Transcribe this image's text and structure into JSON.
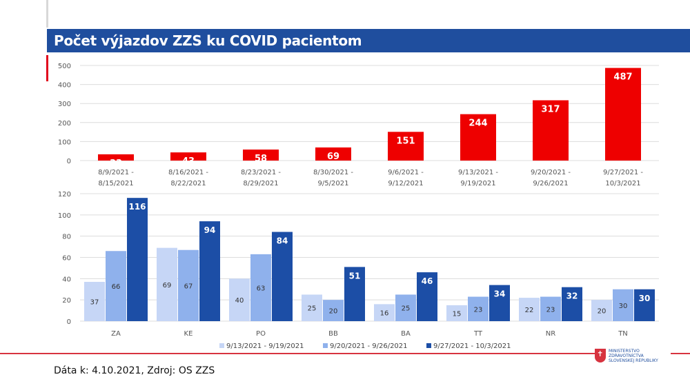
{
  "header": {
    "title": "Počet výjazdov ZZS ku COVID pacientom"
  },
  "chart_data": [
    {
      "type": "bar",
      "categories": [
        "8/9/2021 - 8/15/2021",
        "8/16/2021 - 8/22/2021",
        "8/23/2021 - 8/29/2021",
        "8/30/2021 - 9/5/2021",
        "9/6/2021 - 9/12/2021",
        "9/13/2021 - 9/19/2021",
        "9/20/2021 - 9/26/2021",
        "9/27/2021 - 10/3/2021"
      ],
      "values": [
        33,
        43,
        58,
        69,
        151,
        244,
        317,
        487
      ],
      "ylim": [
        0,
        500
      ],
      "yticks": [
        0,
        100,
        200,
        300,
        400,
        500
      ],
      "grid": true,
      "color": "#ee0000"
    },
    {
      "type": "bar",
      "categories": [
        "ZA",
        "KE",
        "PO",
        "BB",
        "BA",
        "TT",
        "NR",
        "TN"
      ],
      "series": [
        {
          "name": "9/13/2021 - 9/19/2021",
          "values": [
            37,
            69,
            40,
            25,
            16,
            15,
            22,
            20
          ],
          "color": "#c6d6f6"
        },
        {
          "name": "9/20/2021 - 9/26/2021",
          "values": [
            66,
            67,
            63,
            20,
            25,
            23,
            23,
            30
          ],
          "color": "#8fb1ec"
        },
        {
          "name": "9/27/2021 - 10/3/2021",
          "values": [
            116,
            94,
            84,
            51,
            46,
            34,
            32,
            30
          ],
          "color": "#1c4ea6"
        }
      ],
      "ylim": [
        0,
        120
      ],
      "yticks": [
        0,
        20,
        40,
        60,
        80,
        100,
        120
      ],
      "grid": true,
      "legend": "bottom"
    }
  ],
  "footer": {
    "source": "Dáta k: 4.10.2021, Zdroj: OS ZZS",
    "logo": "MINISTERSTVO ZDRAVOTNÍCTVA SLOVENSKEJ REPUBLIKY"
  }
}
